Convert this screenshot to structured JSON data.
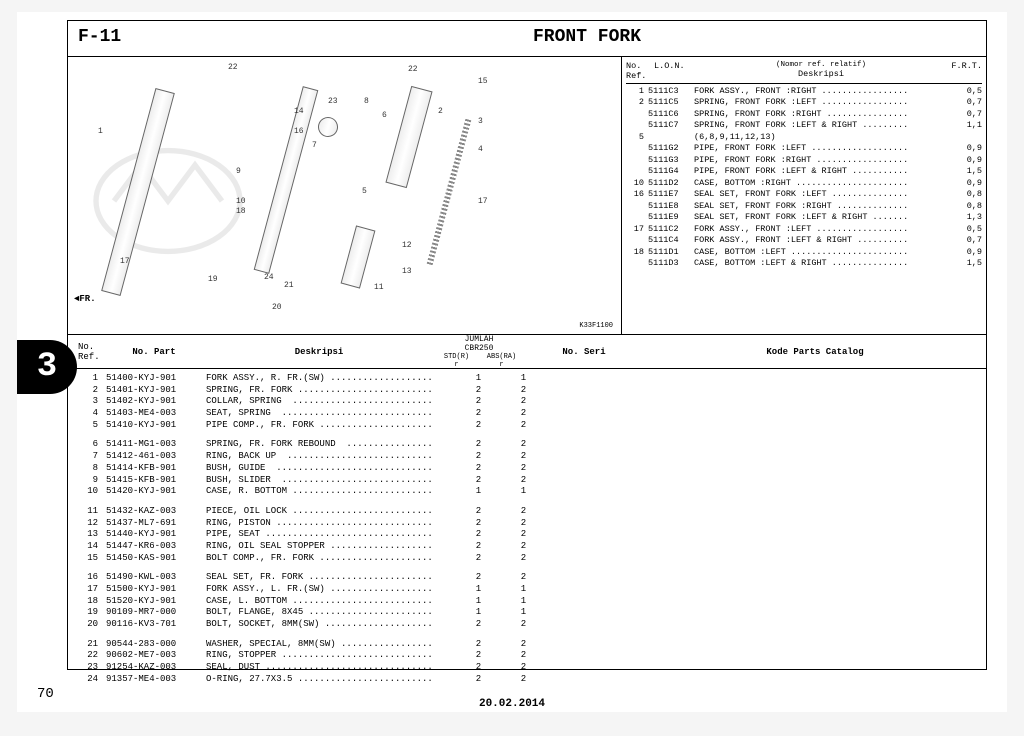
{
  "section_code": "F-11",
  "section_title": "FRONT FORK",
  "chapter_tab": "3",
  "page_number": "70",
  "footer_date": "20.02.2014",
  "diagram_code": "K33F1100",
  "fr_label": "FR.",
  "right_table": {
    "header": {
      "no_ref": "No.\nRef.",
      "lon": "L.O.N.",
      "nomor": "(Nomor ref. relatif)",
      "deskripsi": "Deskripsi",
      "frt": "F.R.T."
    },
    "rows": [
      {
        "ref": "1",
        "lon": "5111C3",
        "desc": "FORK ASSY., FRONT :RIGHT .................",
        "frt": "0,5"
      },
      {
        "ref": "2",
        "lon": "5111C5",
        "desc": "SPRING, FRONT FORK :LEFT .................",
        "frt": "0,7"
      },
      {
        "ref": "",
        "lon": "5111C6",
        "desc": "SPRING, FRONT FORK :RIGHT ................",
        "frt": "0,7"
      },
      {
        "ref": "",
        "lon": "5111C7",
        "desc": "SPRING, FRONT FORK :LEFT & RIGHT .........",
        "frt": "1,1"
      },
      {
        "ref": "5",
        "lon": "",
        "desc": "(6,8,9,11,12,13)",
        "frt": ""
      },
      {
        "ref": "",
        "lon": "5111G2",
        "desc": "PIPE, FRONT FORK :LEFT ...................",
        "frt": "0,9"
      },
      {
        "ref": "",
        "lon": "5111G3",
        "desc": "PIPE, FRONT FORK :RIGHT ..................",
        "frt": "0,9"
      },
      {
        "ref": "",
        "lon": "5111G4",
        "desc": "PIPE, FRONT FORK :LEFT & RIGHT ...........",
        "frt": "1,5"
      },
      {
        "ref": "10",
        "lon": "5111D2",
        "desc": "CASE, BOTTOM :RIGHT ......................",
        "frt": "0,9"
      },
      {
        "ref": "16",
        "lon": "5111E7",
        "desc": "SEAL SET, FRONT FORK :LEFT ...............",
        "frt": "0,8"
      },
      {
        "ref": "",
        "lon": "5111E8",
        "desc": "SEAL SET, FRONT FORK :RIGHT ..............",
        "frt": "0,8"
      },
      {
        "ref": "",
        "lon": "5111E9",
        "desc": "SEAL SET, FRONT FORK :LEFT & RIGHT .......",
        "frt": "1,3"
      },
      {
        "ref": "17",
        "lon": "5111C2",
        "desc": "FORK ASSY., FRONT :LEFT ..................",
        "frt": "0,5"
      },
      {
        "ref": "",
        "lon": "5111C4",
        "desc": "FORK ASSY., FRONT :LEFT & RIGHT ..........",
        "frt": "0,7"
      },
      {
        "ref": "18",
        "lon": "5111D1",
        "desc": "CASE, BOTTOM :LEFT .......................",
        "frt": "0,9"
      },
      {
        "ref": "",
        "lon": "5111D3",
        "desc": "CASE, BOTTOM :LEFT & RIGHT ...............",
        "frt": "1,5"
      }
    ]
  },
  "lower_header": {
    "no_ref": "No.\nRef.",
    "no_part": "No. Part",
    "deskripsi": "Deskripsi",
    "jumlah": "JUMLAH",
    "model": "CBR250",
    "std": "STD(R)\nr",
    "abs": "ABS(RA)\nr",
    "no_seri": "No. Seri",
    "kode": "Kode Parts Catalog"
  },
  "lower_groups": [
    [
      {
        "ref": "1",
        "part": "51400-KYJ-901",
        "desc": "FORK ASSY., R. FR.(SW) ...................",
        "q1": "1",
        "q2": "1"
      },
      {
        "ref": "2",
        "part": "51401-KYJ-901",
        "desc": "SPRING, FR. FORK .........................",
        "q1": "2",
        "q2": "2"
      },
      {
        "ref": "3",
        "part": "51402-KYJ-901",
        "desc": "COLLAR, SPRING  ..........................",
        "q1": "2",
        "q2": "2"
      },
      {
        "ref": "4",
        "part": "51403-ME4-003",
        "desc": "SEAT, SPRING  ............................",
        "q1": "2",
        "q2": "2"
      },
      {
        "ref": "5",
        "part": "51410-KYJ-901",
        "desc": "PIPE COMP., FR. FORK .....................",
        "q1": "2",
        "q2": "2"
      }
    ],
    [
      {
        "ref": "6",
        "part": "51411-MG1-003",
        "desc": "SPRING, FR. FORK REBOUND  ................",
        "q1": "2",
        "q2": "2"
      },
      {
        "ref": "7",
        "part": "51412-461-003",
        "desc": "RING, BACK UP  ...........................",
        "q1": "2",
        "q2": "2"
      },
      {
        "ref": "8",
        "part": "51414-KFB-901",
        "desc": "BUSH, GUIDE  .............................",
        "q1": "2",
        "q2": "2"
      },
      {
        "ref": "9",
        "part": "51415-KFB-901",
        "desc": "BUSH, SLIDER  ............................",
        "q1": "2",
        "q2": "2"
      },
      {
        "ref": "10",
        "part": "51420-KYJ-901",
        "desc": "CASE, R. BOTTOM ..........................",
        "q1": "1",
        "q2": "1"
      }
    ],
    [
      {
        "ref": "11",
        "part": "51432-KAZ-003",
        "desc": "PIECE, OIL LOCK ..........................",
        "q1": "2",
        "q2": "2"
      },
      {
        "ref": "12",
        "part": "51437-ML7-691",
        "desc": "RING, PISTON .............................",
        "q1": "2",
        "q2": "2"
      },
      {
        "ref": "13",
        "part": "51440-KYJ-901",
        "desc": "PIPE, SEAT ...............................",
        "q1": "2",
        "q2": "2"
      },
      {
        "ref": "14",
        "part": "51447-KR6-003",
        "desc": "RING, OIL SEAL STOPPER ...................",
        "q1": "2",
        "q2": "2"
      },
      {
        "ref": "15",
        "part": "51450-KAS-901",
        "desc": "BOLT COMP., FR. FORK .....................",
        "q1": "2",
        "q2": "2"
      }
    ],
    [
      {
        "ref": "16",
        "part": "51490-KWL-003",
        "desc": "SEAL SET, FR. FORK .......................",
        "q1": "2",
        "q2": "2"
      },
      {
        "ref": "17",
        "part": "51500-KYJ-901",
        "desc": "FORK ASSY., L. FR.(SW) ...................",
        "q1": "1",
        "q2": "1"
      },
      {
        "ref": "18",
        "part": "51520-KYJ-901",
        "desc": "CASE, L. BOTTOM ..........................",
        "q1": "1",
        "q2": "1"
      },
      {
        "ref": "19",
        "part": "90109-MR7-000",
        "desc": "BOLT, FLANGE, 8X45 .......................",
        "q1": "1",
        "q2": "1"
      },
      {
        "ref": "20",
        "part": "90116-KV3-701",
        "desc": "BOLT, SOCKET, 8MM(SW) ....................",
        "q1": "2",
        "q2": "2"
      }
    ],
    [
      {
        "ref": "21",
        "part": "90544-283-000",
        "desc": "WASHER, SPECIAL, 8MM(SW) .................",
        "q1": "2",
        "q2": "2"
      },
      {
        "ref": "22",
        "part": "90602-ME7-003",
        "desc": "RING, STOPPER ............................",
        "q1": "2",
        "q2": "2"
      },
      {
        "ref": "23",
        "part": "91254-KAZ-003",
        "desc": "SEAL, DUST ...............................",
        "q1": "2",
        "q2": "2"
      },
      {
        "ref": "24",
        "part": "91357-ME4-003",
        "desc": "O-RING, 27.7X3.5 .........................",
        "q1": "2",
        "q2": "2"
      }
    ]
  ],
  "diagram_labels": [
    "1",
    "2",
    "3",
    "4",
    "5",
    "6",
    "7",
    "8",
    "9",
    "10",
    "11",
    "12",
    "13",
    "14",
    "15",
    "16",
    "17",
    "18",
    "19",
    "20",
    "21",
    "22",
    "23",
    "24"
  ]
}
